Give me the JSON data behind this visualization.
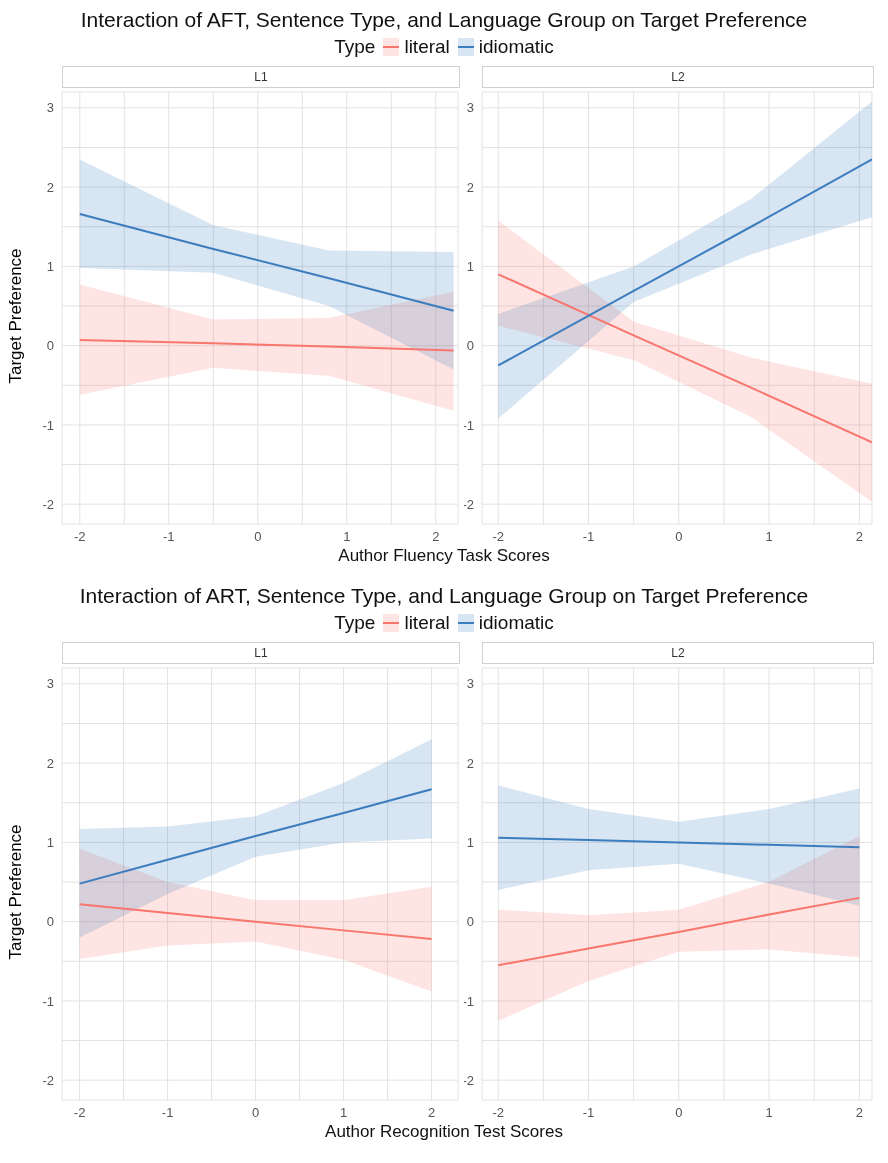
{
  "chart_data": [
    {
      "type": "line",
      "title": "Interaction of AFT, Sentence Type, and Language Group on Target Preference",
      "legend_title": "Type",
      "legend": "top",
      "subtitle": "L1",
      "xlabel": "Author Fluency Task Scores",
      "ylabel": "Target Preference",
      "grid": true,
      "xlim": [
        -2.2,
        2.25
      ],
      "ylim": [
        -2.25,
        3.2
      ],
      "xticks": [
        -2,
        {
          "value": -1.5,
          "label": null
        },
        -1,
        {
          "value": -0.5,
          "label": null
        },
        0,
        {
          "value": 0.5,
          "label": null
        },
        1,
        {
          "value": 1.5,
          "label": null
        },
        2
      ],
      "yticks": [
        -2,
        {
          "value": -1.5,
          "label": null
        },
        -1,
        {
          "value": -0.5,
          "label": null
        },
        0,
        {
          "value": 0.5,
          "label": null
        },
        1,
        {
          "value": 1.5,
          "label": null
        },
        2,
        {
          "value": 2.5,
          "label": null
        },
        3
      ],
      "x": [
        -2,
        -0.5,
        0.8,
        2.2
      ],
      "series": [
        {
          "name": "literal",
          "color": "#f8766d",
          "values": [
            0.07,
            0.03,
            -0.01,
            -0.06
          ],
          "lower": [
            -0.62,
            -0.28,
            -0.38,
            -0.82
          ],
          "upper": [
            0.77,
            0.33,
            0.35,
            0.68
          ]
        },
        {
          "name": "idiomatic",
          "color": "#3b7dbf",
          "values": [
            1.66,
            1.22,
            0.85,
            0.44
          ],
          "lower": [
            0.98,
            0.92,
            0.5,
            -0.3
          ],
          "upper": [
            2.35,
            1.52,
            1.2,
            1.18
          ]
        }
      ]
    },
    {
      "type": "line",
      "subtitle": "L2",
      "grid": true,
      "xlim": [
        -2.18,
        2.14
      ],
      "ylim": [
        -2.25,
        3.2
      ],
      "xticks": [
        -2,
        {
          "value": -1.5,
          "label": null
        },
        -1,
        {
          "value": -0.5,
          "label": null
        },
        0,
        {
          "value": 0.5,
          "label": null
        },
        1,
        {
          "value": 1.5,
          "label": null
        },
        2
      ],
      "yticks": [
        -2,
        {
          "value": -1.5,
          "label": null
        },
        -1,
        {
          "value": -0.5,
          "label": null
        },
        0,
        {
          "value": 0.5,
          "label": null
        },
        1,
        {
          "value": 1.5,
          "label": null
        },
        2,
        {
          "value": 2.5,
          "label": null
        },
        3
      ],
      "x": [
        -2,
        -0.5,
        0.8,
        2.14
      ],
      "series": [
        {
          "color": "#f8766d",
          "values": [
            0.9,
            0.13,
            -0.53,
            -1.22
          ],
          "lower": [
            0.25,
            -0.18,
            -0.9,
            -1.97
          ],
          "upper": [
            1.58,
            0.3,
            -0.15,
            -0.48
          ]
        },
        {
          "color": "#3b7dbf",
          "values": [
            -0.25,
            0.69,
            1.5,
            2.35
          ],
          "lower": [
            -0.92,
            0.55,
            1.15,
            1.62
          ],
          "upper": [
            0.4,
            1.0,
            1.85,
            3.08
          ]
        }
      ]
    },
    {
      "type": "line",
      "title": "Interaction of ART, Sentence Type, and Language Group on Target Preference",
      "legend_title": "Type",
      "legend": "top",
      "subtitle": "L1",
      "xlabel": "Author Recognition Test Scores",
      "ylabel": "Target Preference",
      "grid": true,
      "xlim": [
        -2.2,
        2.3
      ],
      "ylim": [
        -2.25,
        3.2
      ],
      "xticks": [
        -2,
        {
          "value": -1.5,
          "label": null
        },
        -1,
        {
          "value": -0.5,
          "label": null
        },
        0,
        {
          "value": 0.5,
          "label": null
        },
        1,
        {
          "value": 1.5,
          "label": null
        },
        2
      ],
      "yticks": [
        -2,
        {
          "value": -1.5,
          "label": null
        },
        -1,
        {
          "value": -0.5,
          "label": null
        },
        0,
        {
          "value": 0.5,
          "label": null
        },
        1,
        {
          "value": 1.5,
          "label": null
        },
        2,
        {
          "value": 2.5,
          "label": null
        },
        3
      ],
      "x": [
        -2,
        -1,
        0,
        1,
        2
      ],
      "series": [
        {
          "name": "literal",
          "color": "#f8766d",
          "values": [
            0.22,
            0.11,
            0,
            -0.11,
            -0.22
          ],
          "lower": [
            -0.47,
            -0.3,
            -0.25,
            -0.48,
            -0.88
          ],
          "upper": [
            0.92,
            0.5,
            0.27,
            0.27,
            0.44
          ]
        },
        {
          "name": "idiomatic",
          "color": "#3b7dbf",
          "values": [
            0.48,
            0.78,
            1.08,
            1.37,
            1.67
          ],
          "lower": [
            -0.2,
            0.35,
            0.82,
            1.0,
            1.05
          ],
          "upper": [
            1.17,
            1.2,
            1.33,
            1.75,
            2.3
          ]
        }
      ]
    },
    {
      "type": "line",
      "subtitle": "L2",
      "grid": true,
      "xlim": [
        -2.18,
        2.14
      ],
      "ylim": [
        -2.25,
        3.2
      ],
      "xticks": [
        -2,
        {
          "value": -1.5,
          "label": null
        },
        -1,
        {
          "value": -0.5,
          "label": null
        },
        0,
        {
          "value": 0.5,
          "label": null
        },
        1,
        {
          "value": 1.5,
          "label": null
        },
        2
      ],
      "yticks": [
        -2,
        {
          "value": -1.5,
          "label": null
        },
        -1,
        {
          "value": -0.5,
          "label": null
        },
        0,
        {
          "value": 0.5,
          "label": null
        },
        1,
        {
          "value": 1.5,
          "label": null
        },
        2,
        {
          "value": 2.5,
          "label": null
        },
        3
      ],
      "x": [
        -2,
        -1,
        0,
        1,
        2
      ],
      "series": [
        {
          "color": "#f8766d",
          "values": [
            -0.55,
            -0.34,
            -0.13,
            0.09,
            0.3
          ],
          "lower": [
            -1.25,
            -0.75,
            -0.38,
            -0.35,
            -0.45
          ],
          "upper": [
            0.15,
            0.08,
            0.15,
            0.5,
            1.08
          ]
        },
        {
          "color": "#3b7dbf",
          "values": [
            1.06,
            1.03,
            1.0,
            0.97,
            0.94
          ],
          "lower": [
            0.4,
            0.65,
            0.73,
            0.48,
            0.2
          ],
          "upper": [
            1.72,
            1.42,
            1.26,
            1.42,
            1.68
          ]
        }
      ]
    }
  ]
}
